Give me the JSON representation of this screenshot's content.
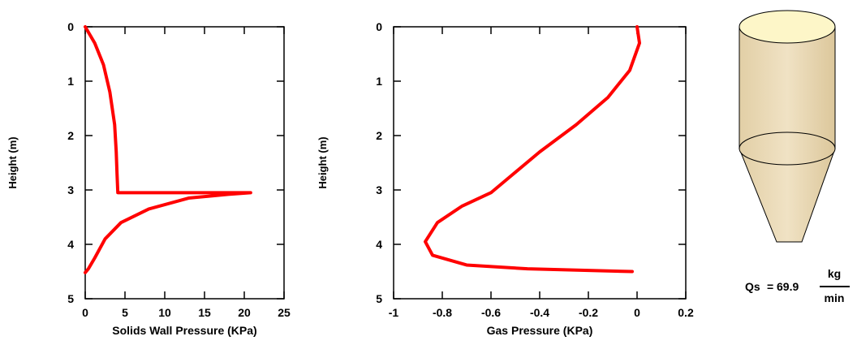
{
  "chart_data": [
    {
      "type": "line",
      "xlabel": "Solids Wall Pressure (KPa)",
      "ylabel": "Height (m)",
      "xlim": [
        0,
        25
      ],
      "ylim": [
        5,
        0
      ],
      "x_ticks": [
        0,
        5,
        10,
        15,
        20,
        25
      ],
      "y_ticks": [
        0,
        1,
        2,
        3,
        4,
        5
      ],
      "grid": false,
      "series": [
        {
          "color": "#ff0000",
          "points": [
            [
              0,
              0
            ],
            [
              1.2,
              0.3
            ],
            [
              2.3,
              0.7
            ],
            [
              3.1,
              1.2
            ],
            [
              3.7,
              1.8
            ],
            [
              3.9,
              2.3
            ],
            [
              4.0,
              2.7
            ],
            [
              4.1,
              3.05
            ],
            [
              20.8,
              3.05
            ],
            [
              18.0,
              3.08
            ],
            [
              13.0,
              3.15
            ],
            [
              8.0,
              3.35
            ],
            [
              4.5,
              3.6
            ],
            [
              2.5,
              3.9
            ],
            [
              1.2,
              4.25
            ],
            [
              0.4,
              4.45
            ],
            [
              0,
              4.52
            ]
          ]
        }
      ]
    },
    {
      "type": "line",
      "xlabel": "Gas Pressure (KPa)",
      "ylabel": "Height (m)",
      "xlim": [
        -1,
        0.2
      ],
      "ylim": [
        5,
        0
      ],
      "x_ticks": [
        -1,
        -0.8,
        -0.6,
        -0.4,
        -0.2,
        0,
        0.2
      ],
      "y_ticks": [
        0,
        1,
        2,
        3,
        4,
        5
      ],
      "grid": false,
      "series": [
        {
          "color": "#ff0000",
          "points": [
            [
              0.0,
              0
            ],
            [
              0.01,
              0.3
            ],
            [
              -0.03,
              0.8
            ],
            [
              -0.12,
              1.3
            ],
            [
              -0.25,
              1.8
            ],
            [
              -0.4,
              2.3
            ],
            [
              -0.52,
              2.75
            ],
            [
              -0.6,
              3.05
            ],
            [
              -0.72,
              3.3
            ],
            [
              -0.82,
              3.6
            ],
            [
              -0.87,
              3.95
            ],
            [
              -0.84,
              4.2
            ],
            [
              -0.7,
              4.38
            ],
            [
              -0.45,
              4.45
            ],
            [
              -0.2,
              4.48
            ],
            [
              -0.02,
              4.5
            ]
          ]
        }
      ]
    }
  ],
  "silo": {
    "fill_color": "#ecdcb8",
    "top_color": "#fdf6c8"
  },
  "flow": {
    "label": "Qs",
    "equals": "=",
    "value": "69.9",
    "unit_numerator": "kg",
    "unit_denominator": "min"
  }
}
